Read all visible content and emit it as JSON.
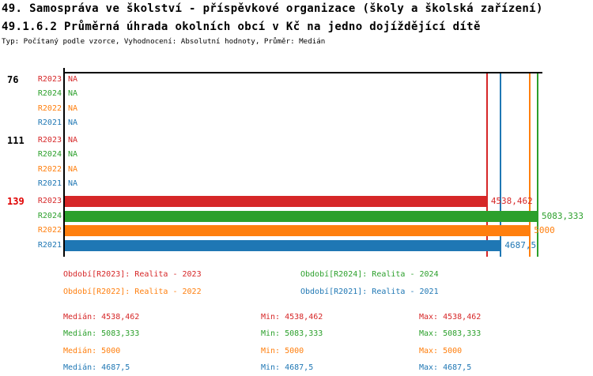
{
  "header": {
    "title_line1": "49. Samospráva ve školství - příspěvkové organizace (školy a školská zařízení)",
    "title_line2": "49.1.6.2 Průměrná úhrada okolních obcí v Kč na jedno dojíždějící dítě",
    "subtitle": "Typ: Počítaný podle vzorce, Vyhodnocení: Absolutní hodnoty, Průměr: Medián"
  },
  "chart_data": {
    "type": "bar",
    "orientation": "horizontal",
    "axis": {
      "min": 0,
      "max": 5134
    },
    "grid": false,
    "na_label": "NA",
    "emphasis_color": "#e00000",
    "series_order": [
      "R2023",
      "R2024",
      "R2022",
      "R2021"
    ],
    "series_colors": {
      "R2023": "#d62728",
      "R2024": "#2ca02c",
      "R2022": "#ff7f0e",
      "R2021": "#1f77b4"
    },
    "groups": [
      {
        "label": "76",
        "emphasized": false,
        "rows": [
          {
            "series": "R2023",
            "value": null,
            "display": "NA"
          },
          {
            "series": "R2024",
            "value": null,
            "display": "NA"
          },
          {
            "series": "R2022",
            "value": null,
            "display": "NA"
          },
          {
            "series": "R2021",
            "value": null,
            "display": "NA"
          }
        ]
      },
      {
        "label": "111",
        "emphasized": false,
        "rows": [
          {
            "series": "R2023",
            "value": null,
            "display": "NA"
          },
          {
            "series": "R2024",
            "value": null,
            "display": "NA"
          },
          {
            "series": "R2022",
            "value": null,
            "display": "NA"
          },
          {
            "series": "R2021",
            "value": null,
            "display": "NA"
          }
        ]
      },
      {
        "label": "139",
        "emphasized": true,
        "rows": [
          {
            "series": "R2023",
            "value": 4538.462,
            "display": "4538,462"
          },
          {
            "series": "R2024",
            "value": 5083.333,
            "display": "5083,333"
          },
          {
            "series": "R2022",
            "value": 5000,
            "display": "5000"
          },
          {
            "series": "R2021",
            "value": 4687.5,
            "display": "4687,5"
          }
        ]
      }
    ],
    "ref_lines": [
      {
        "series": "R2023",
        "value": 4538.462
      },
      {
        "series": "R2021",
        "value": 4687.5
      },
      {
        "series": "R2022",
        "value": 5000
      },
      {
        "series": "R2024",
        "value": 5083.333
      }
    ]
  },
  "legend": {
    "items": [
      {
        "series": "R2023",
        "text": "Období[R2023]: Realita - 2023",
        "column": "left",
        "row": 0
      },
      {
        "series": "R2022",
        "text": "Období[R2022]: Realita - 2022",
        "column": "left",
        "row": 1
      },
      {
        "series": "R2024",
        "text": "Období[R2024]: Realita - 2024",
        "column": "right",
        "row": 0
      },
      {
        "series": "R2021",
        "text": "Období[R2021]: Realita - 2021",
        "column": "right",
        "row": 1
      }
    ]
  },
  "stats": {
    "rows": [
      {
        "series": "R2023",
        "median_text": "Medián: 4538,462",
        "min_text": "Min: 4538,462",
        "max_text": "Max: 4538,462"
      },
      {
        "series": "R2024",
        "median_text": "Medián: 5083,333",
        "min_text": "Min: 5083,333",
        "max_text": "Max: 5083,333"
      },
      {
        "series": "R2022",
        "median_text": "Medián: 5000",
        "min_text": "Min: 5000",
        "max_text": "Max: 5000"
      },
      {
        "series": "R2021",
        "median_text": "Medián: 4687,5",
        "min_text": "Min: 4687,5",
        "max_text": "Max: 4687,5"
      }
    ]
  }
}
